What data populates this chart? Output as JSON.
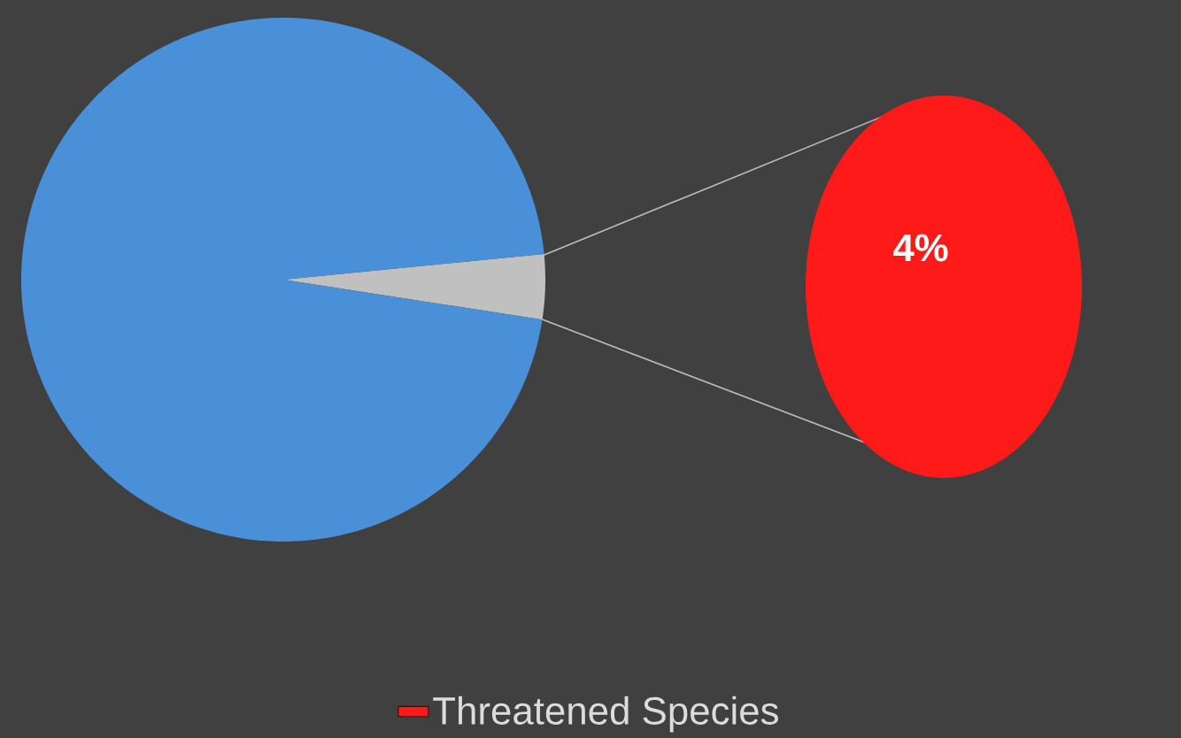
{
  "chart_data": [
    {
      "type": "pie",
      "categories": [
        null,
        null
      ],
      "values": [
        4,
        96
      ],
      "colors": [
        "#c0c0c0",
        "#4a90d9"
      ]
    },
    {
      "type": "pie",
      "categories": [
        "Threatened Species"
      ],
      "values": [
        4
      ],
      "colors": [
        "#ff1a1a"
      ],
      "value_labels": [
        "4%"
      ],
      "legend": "bottom"
    }
  ]
}
